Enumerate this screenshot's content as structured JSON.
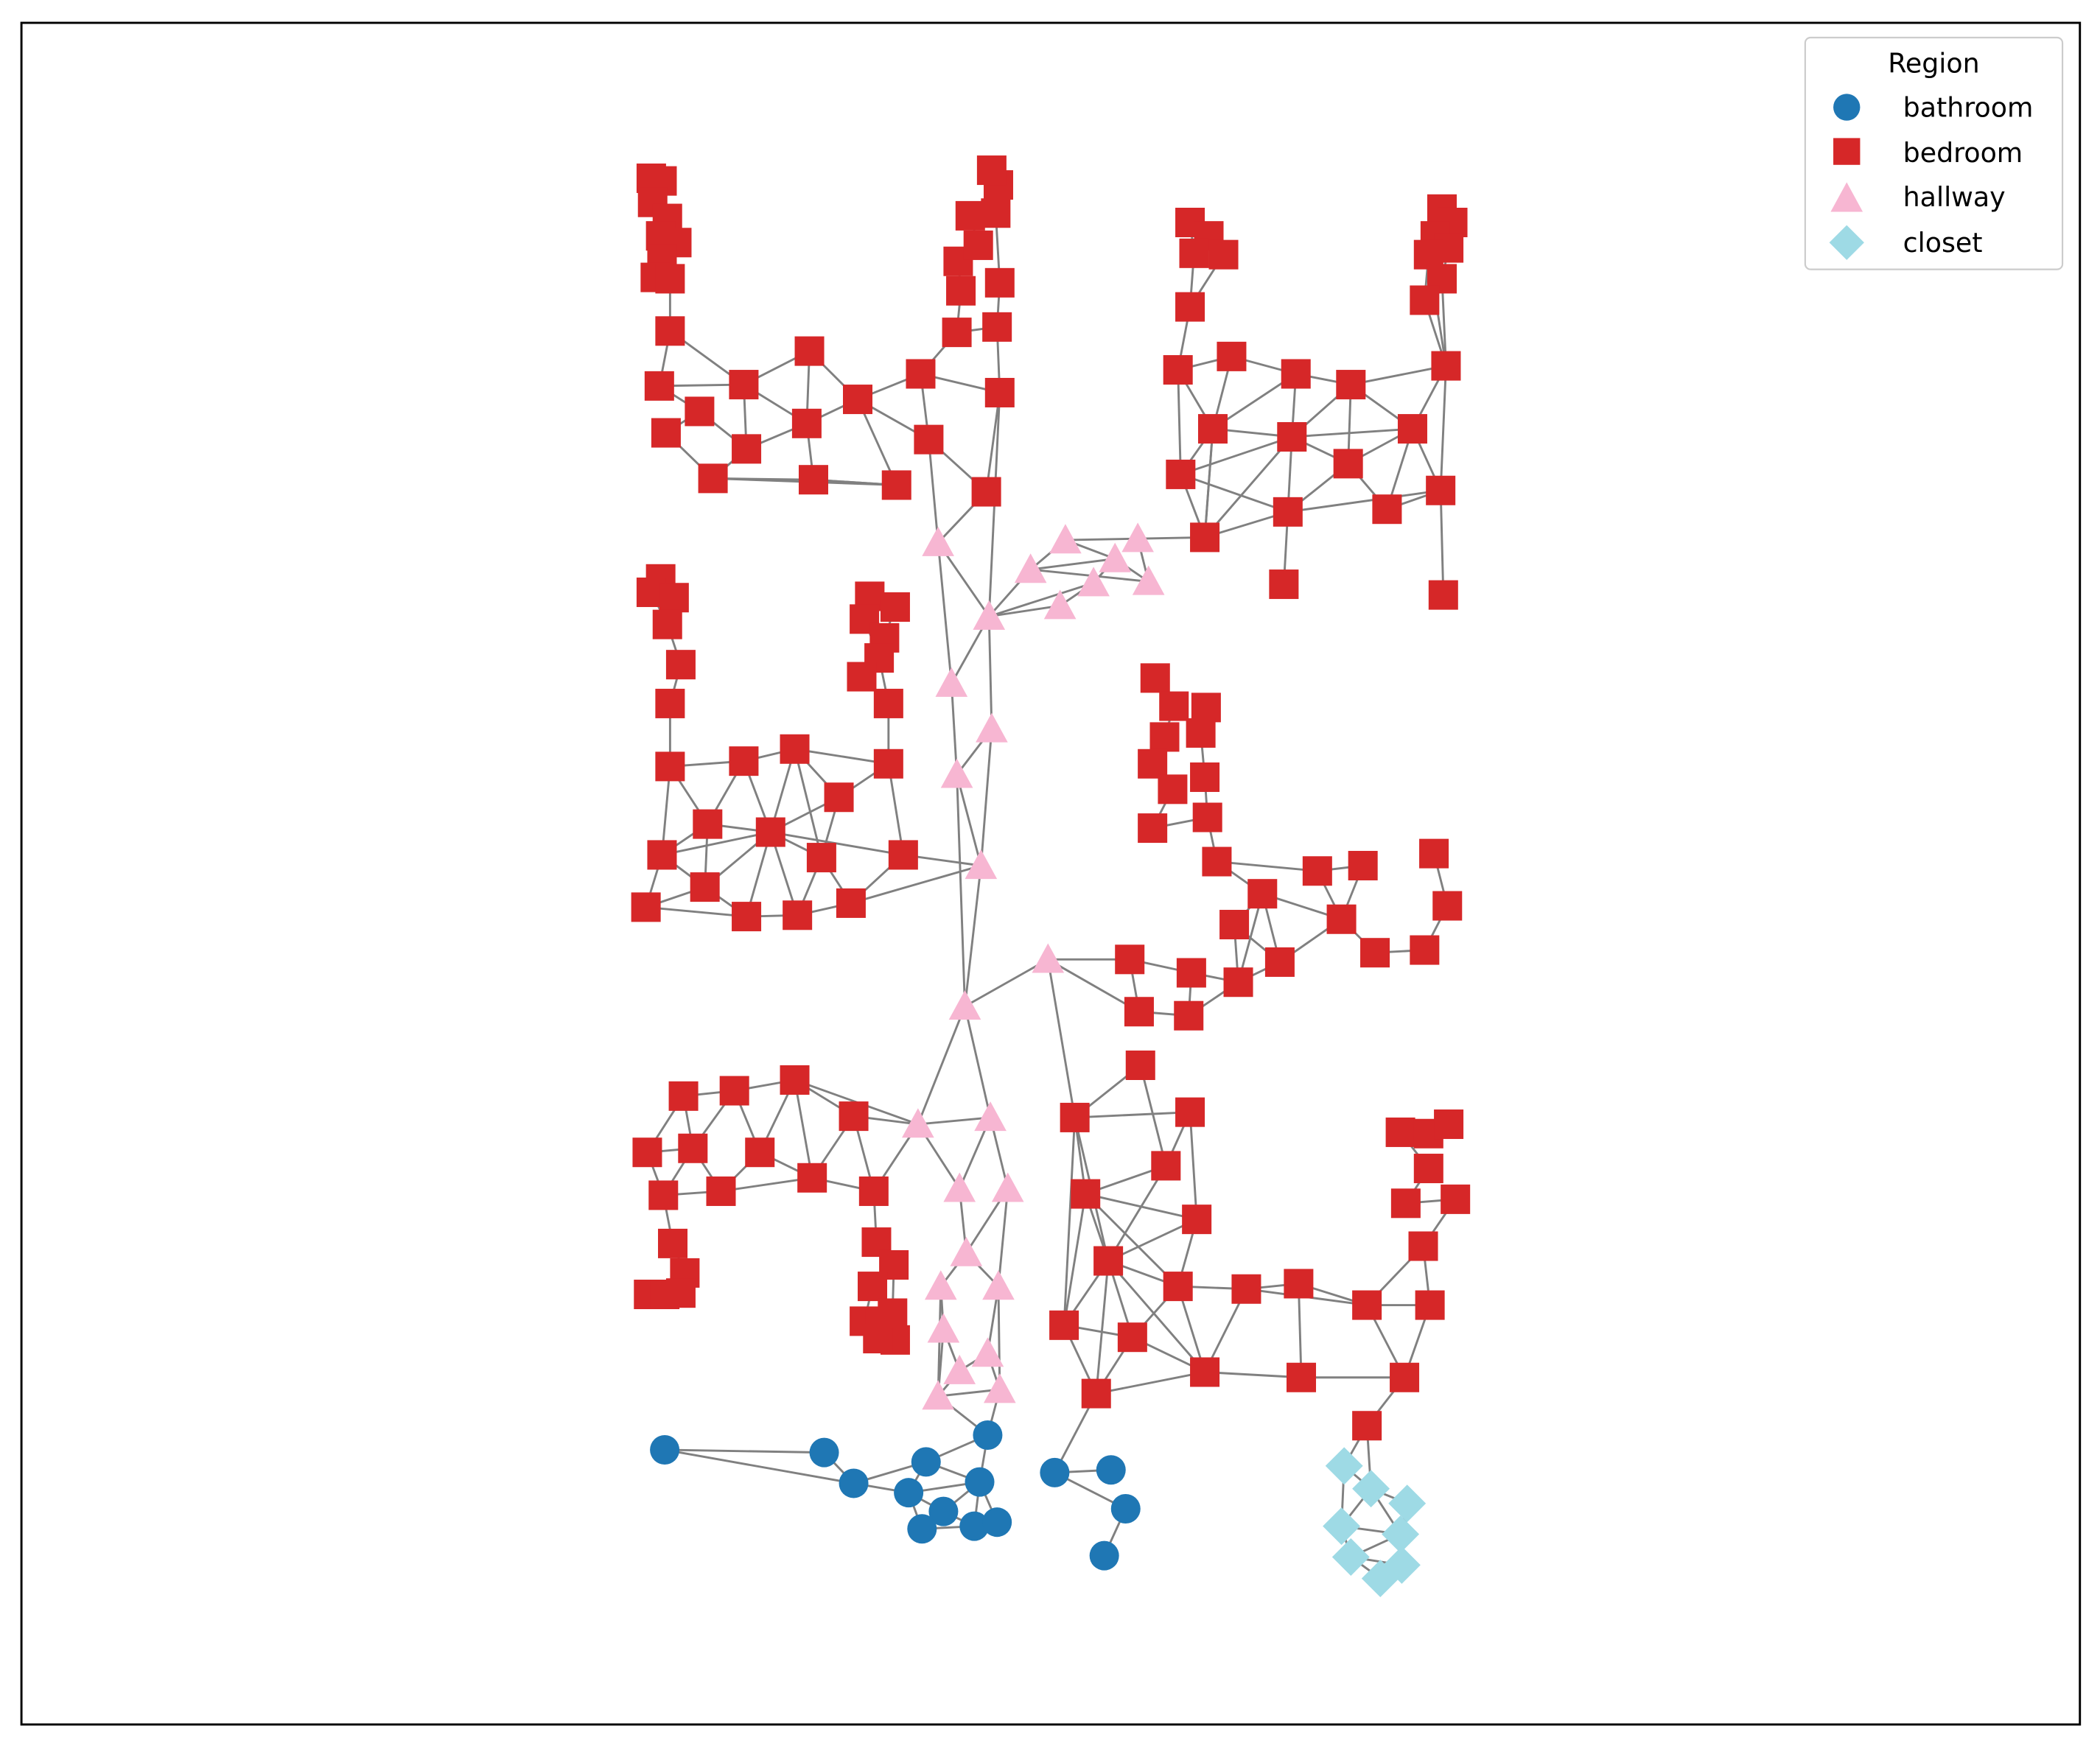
{
  "legend": {
    "title": "Region",
    "items": [
      {
        "label": "bathroom",
        "color": "#1f77b4",
        "marker": "circle"
      },
      {
        "label": "bedroom",
        "color": "#d62728",
        "marker": "square"
      },
      {
        "label": "hallway",
        "color": "#f7b6d2",
        "marker": "triangle"
      },
      {
        "label": "closet",
        "color": "#9edae5",
        "marker": "diamond"
      }
    ]
  },
  "colors": {
    "edge": "#808080",
    "frame": "#000000",
    "background": "#ffffff"
  }
}
